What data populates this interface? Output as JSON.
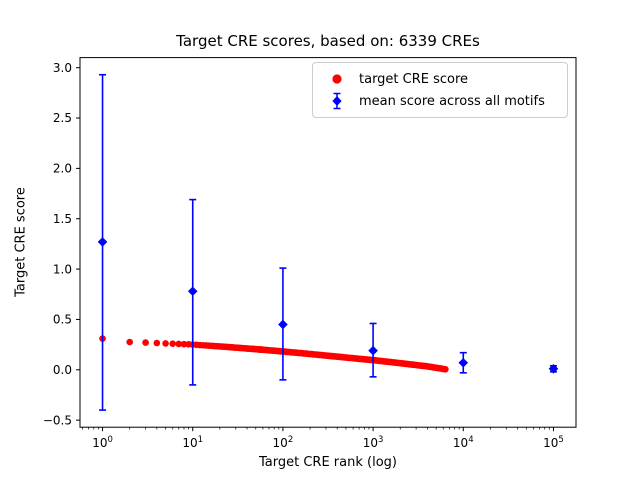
{
  "chart_data": {
    "type": "scatter",
    "title": "Target CRE scores, based on: 6339 CREs",
    "xlabel": "Target CRE rank (log)",
    "ylabel": "Target CRE score",
    "x_scale": "log",
    "xlim_log10": [
      -0.25,
      5.25
    ],
    "ylim": [
      -0.57,
      3.1
    ],
    "yticks": [
      -0.5,
      0.0,
      0.5,
      1.0,
      1.5,
      2.0,
      2.5,
      3.0
    ],
    "xtick_exponents": [
      0,
      1,
      2,
      3,
      4,
      5
    ],
    "grid": false,
    "colors": {
      "target": "#ff0000",
      "mean": "#0000ff",
      "frame": "#000000",
      "legend_border": "#cccccc"
    },
    "series": [
      {
        "name": "target CRE score",
        "style": "scatter",
        "marker": "circle",
        "color": "#ff0000",
        "n_points": 6339,
        "rank_range": [
          1,
          6339
        ],
        "anchors": [
          [
            1,
            0.31
          ],
          [
            2,
            0.275
          ],
          [
            3,
            0.27
          ],
          [
            4,
            0.266
          ],
          [
            5,
            0.262
          ],
          [
            7,
            0.257
          ],
          [
            10,
            0.251
          ],
          [
            20,
            0.232
          ],
          [
            50,
            0.205
          ],
          [
            100,
            0.182
          ],
          [
            200,
            0.157
          ],
          [
            500,
            0.122
          ],
          [
            1000,
            0.096
          ],
          [
            2000,
            0.066
          ],
          [
            4000,
            0.034
          ],
          [
            6339,
            0.005
          ]
        ]
      },
      {
        "name": "mean score across all motifs",
        "style": "errorbar",
        "marker": "diamond",
        "color": "#0000ff",
        "points": [
          {
            "x": 1,
            "mean": 1.27,
            "min": -0.4,
            "max": 2.93
          },
          {
            "x": 10,
            "mean": 0.78,
            "min": -0.15,
            "max": 1.69
          },
          {
            "x": 100,
            "mean": 0.45,
            "min": -0.1,
            "max": 1.01
          },
          {
            "x": 1000,
            "mean": 0.19,
            "min": -0.07,
            "max": 0.46
          },
          {
            "x": 10000,
            "mean": 0.07,
            "min": -0.03,
            "max": 0.17
          },
          {
            "x": 100000,
            "mean": 0.01,
            "min": -0.02,
            "max": 0.04
          }
        ]
      }
    ],
    "legend": {
      "position": "upper right",
      "labels": [
        "target CRE score",
        "mean score across all motifs"
      ]
    }
  }
}
